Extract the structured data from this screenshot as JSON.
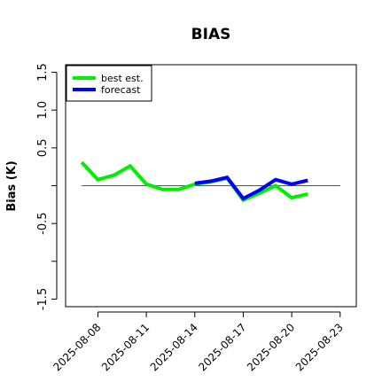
{
  "chart_data": {
    "type": "line",
    "title": "BIAS",
    "ylabel": "Bias (K)",
    "xlabel": "",
    "ylim": [
      -1.6,
      1.6
    ],
    "yticks": [
      -1.5,
      -1.0,
      -0.5,
      0.0,
      0.5,
      1.0,
      1.5
    ],
    "ytick_labels": [
      "-1.5",
      "",
      "-0.5",
      "",
      "0.5",
      "1.0",
      "1.5"
    ],
    "xlim": [
      "2025-08-06",
      "2025-08-24"
    ],
    "xticks": [
      "2025-08-08",
      "2025-08-11",
      "2025-08-14",
      "2025-08-17",
      "2025-08-20",
      "2025-08-23"
    ],
    "highlight_tick": "2025-08-14",
    "highlight_color": "#228B22",
    "reference_line": 0,
    "legend": {
      "position": "top-left"
    },
    "series": [
      {
        "name": "best est.",
        "color": "#00ee00",
        "x": [
          "2025-08-07",
          "2025-08-08",
          "2025-08-09",
          "2025-08-10",
          "2025-08-11",
          "2025-08-12",
          "2025-08-13",
          "2025-08-14",
          "2025-08-15",
          "2025-08-16",
          "2025-08-17",
          "2025-08-18",
          "2025-08-19",
          "2025-08-20",
          "2025-08-21"
        ],
        "values": [
          0.31,
          0.08,
          0.14,
          0.26,
          0.02,
          -0.05,
          -0.05,
          0.02,
          0.05,
          0.1,
          -0.19,
          -0.1,
          0.0,
          -0.16,
          -0.11
        ]
      },
      {
        "name": "forecast",
        "color": "#0000ff",
        "x": [
          "2025-08-14",
          "2025-08-15",
          "2025-08-16",
          "2025-08-17",
          "2025-08-18",
          "2025-08-19",
          "2025-08-20",
          "2025-08-21"
        ],
        "values": [
          0.03,
          0.06,
          0.11,
          -0.17,
          -0.06,
          0.08,
          0.02,
          0.07
        ]
      }
    ]
  }
}
